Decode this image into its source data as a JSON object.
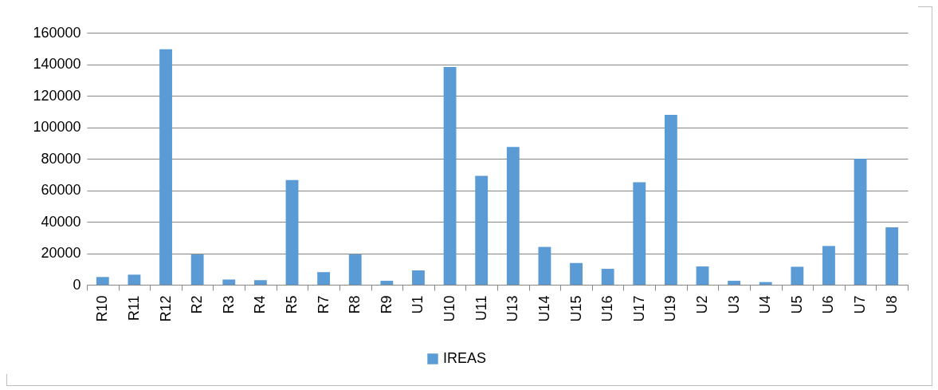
{
  "chart_data": {
    "type": "bar",
    "categories": [
      "R10",
      "R11",
      "R12",
      "R2",
      "R3",
      "R4",
      "R5",
      "R7",
      "R8",
      "R9",
      "U1",
      "U10",
      "U11",
      "U13",
      "U14",
      "U15",
      "U16",
      "U17",
      "U19",
      "U2",
      "U3",
      "U4",
      "U5",
      "U6",
      "U7",
      "U8"
    ],
    "series": [
      {
        "name": "IREAS",
        "color": "#5b9bd5",
        "values": [
          4900,
          6400,
          149500,
          19200,
          3300,
          2900,
          66500,
          8000,
          19200,
          2500,
          9100,
          138200,
          69100,
          87500,
          24000,
          13800,
          10100,
          65100,
          107900,
          11600,
          2500,
          1700,
          11400,
          24600,
          80000,
          36400
        ]
      }
    ],
    "ylim": [
      0,
      160000
    ],
    "yticks": [
      0,
      20000,
      40000,
      60000,
      80000,
      100000,
      120000,
      140000,
      160000
    ],
    "grid": "y",
    "legend": "bottom"
  }
}
